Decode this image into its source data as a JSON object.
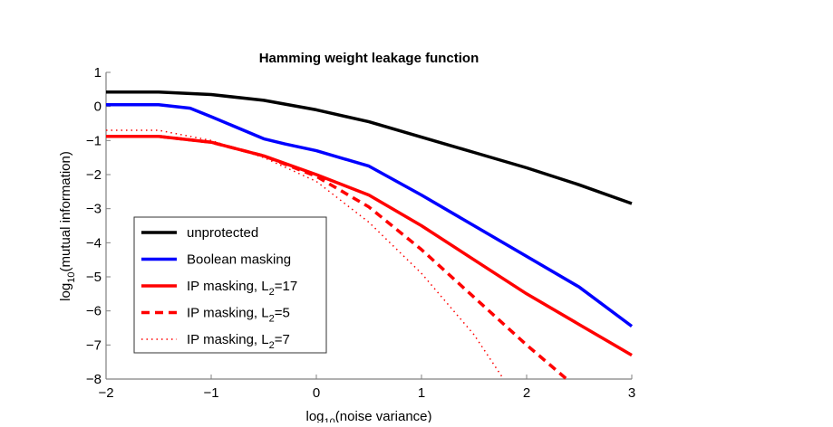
{
  "chart_data": {
    "type": "line",
    "title": "Hamming weight leakage function",
    "xlabel": "log10(noise variance)",
    "ylabel": "log10(mutual information)",
    "xlim": [
      -2,
      3
    ],
    "ylim": [
      -8,
      1
    ],
    "xticks": [
      -2,
      -1,
      0,
      1,
      2,
      3
    ],
    "yticks": [
      1,
      0,
      -1,
      -2,
      -3,
      -4,
      -5,
      -6,
      -7,
      -8
    ],
    "grid": false,
    "legend_position": "bottom-left",
    "series": [
      {
        "name": "unprotected",
        "color": "#000000",
        "style": "solid",
        "x": [
          -2,
          -1.5,
          -1,
          -0.5,
          0,
          0.5,
          1,
          1.5,
          2,
          2.5,
          3
        ],
        "y": [
          0.42,
          0.42,
          0.35,
          0.18,
          -0.1,
          -0.45,
          -0.9,
          -1.35,
          -1.8,
          -2.3,
          -2.85
        ]
      },
      {
        "name": "Boolean masking",
        "color": "#0000ff",
        "style": "solid",
        "x": [
          -2,
          -1.5,
          -1.2,
          -1,
          -0.5,
          -0.3,
          0,
          0.5,
          1,
          1.5,
          2,
          2.5,
          3
        ],
        "y": [
          0.05,
          0.05,
          -0.05,
          -0.3,
          -0.95,
          -1.1,
          -1.3,
          -1.75,
          -2.6,
          -3.5,
          -4.4,
          -5.3,
          -6.45
        ]
      },
      {
        "name": "IP masking, L2=17",
        "color": "#ff0000",
        "style": "solid",
        "x": [
          -2,
          -1.5,
          -1,
          -0.5,
          0,
          0.5,
          1,
          1.5,
          2,
          2.5,
          3
        ],
        "y": [
          -0.88,
          -0.88,
          -1.05,
          -1.45,
          -2.0,
          -2.6,
          -3.5,
          -4.5,
          -5.5,
          -6.4,
          -7.3
        ]
      },
      {
        "name": "IP masking, L2=5",
        "color": "#ff0000",
        "style": "dashed",
        "x": [
          -2,
          -1.5,
          -1,
          -0.5,
          0,
          0.5,
          1,
          1.5,
          2,
          2.38
        ],
        "y": [
          -0.88,
          -0.88,
          -1.05,
          -1.45,
          -2.05,
          -2.95,
          -4.2,
          -5.6,
          -7.0,
          -8.0
        ]
      },
      {
        "name": "IP masking, L2=7",
        "color": "#ff0000",
        "style": "dotted",
        "x": [
          -2,
          -1.5,
          -1,
          -0.5,
          0,
          0.5,
          1,
          1.5,
          1.78
        ],
        "y": [
          -0.7,
          -0.7,
          -1.0,
          -1.5,
          -2.2,
          -3.4,
          -4.9,
          -6.7,
          -8.0
        ]
      }
    ]
  }
}
